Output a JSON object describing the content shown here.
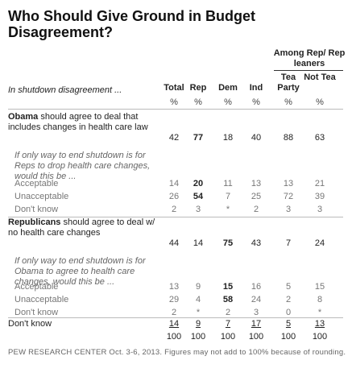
{
  "chart_data": {
    "type": "table",
    "title": "Who Should Give Ground in Budget Disagreement?",
    "question_label": "In shutdown disagreement ...",
    "group_header": "Among Rep/ Rep leaners",
    "columns": [
      {
        "key": "total",
        "label": "Total"
      },
      {
        "key": "rep",
        "label": "Rep"
      },
      {
        "key": "dem",
        "label": "Dem"
      },
      {
        "key": "ind",
        "label": "Ind"
      },
      {
        "key": "tea",
        "label": "Tea Party"
      },
      {
        "key": "nottea",
        "label": "Not Tea"
      }
    ],
    "unit": "%",
    "rows": [
      {
        "kind": "main",
        "bold_lead": "Obama",
        "label": " should agree to deal that includes changes in health care law",
        "values": [
          "42",
          "77",
          "18",
          "40",
          "88",
          "63"
        ],
        "bold_cols": [
          1
        ],
        "underline": false
      },
      {
        "kind": "note",
        "label": "If only way to end shutdown is for Reps to drop health care changes, would this be ...",
        "values": null
      },
      {
        "kind": "sub",
        "label": "Acceptable",
        "values": [
          "14",
          "20",
          "11",
          "13",
          "13",
          "21"
        ],
        "bold_cols": [
          1
        ]
      },
      {
        "kind": "sub",
        "label": "Unacceptable",
        "values": [
          "26",
          "54",
          "7",
          "25",
          "72",
          "39"
        ],
        "bold_cols": [
          1
        ]
      },
      {
        "kind": "sub",
        "label": "Don't know",
        "values": [
          "2",
          "3",
          "*",
          "2",
          "3",
          "3"
        ],
        "bold_cols": []
      },
      {
        "kind": "main",
        "bold_lead": "Republicans",
        "label": " should agree to deal w/ no health care changes",
        "values": [
          "44",
          "14",
          "75",
          "43",
          "7",
          "24"
        ],
        "bold_cols": [
          2
        ],
        "underline": false
      },
      {
        "kind": "note",
        "label": "If only way to end shutdown is for Obama to agree to health care changes, would this be ...",
        "values": null
      },
      {
        "kind": "sub",
        "label": "Acceptable",
        "values": [
          "13",
          "9",
          "15",
          "16",
          "5",
          "15"
        ],
        "bold_cols": [
          2
        ]
      },
      {
        "kind": "sub",
        "label": "Unacceptable",
        "values": [
          "29",
          "4",
          "58",
          "24",
          "2",
          "8"
        ],
        "bold_cols": [
          2
        ]
      },
      {
        "kind": "sub",
        "label": "Don't know",
        "values": [
          "2",
          "*",
          "2",
          "3",
          "0",
          "*"
        ],
        "bold_cols": []
      },
      {
        "kind": "main",
        "bold_lead": "",
        "label": "Don't know",
        "values": [
          "14",
          "9",
          "7",
          "17",
          "5",
          "13"
        ],
        "bold_cols": [],
        "underline": true
      },
      {
        "kind": "total",
        "bold_lead": "",
        "label": "",
        "values": [
          "100",
          "100",
          "100",
          "100",
          "100",
          "100"
        ],
        "bold_cols": [],
        "underline": false
      }
    ],
    "footnote": "PEW RESEARCH CENTER Oct. 3-6, 2013. Figures may not add to 100% because of rounding."
  }
}
